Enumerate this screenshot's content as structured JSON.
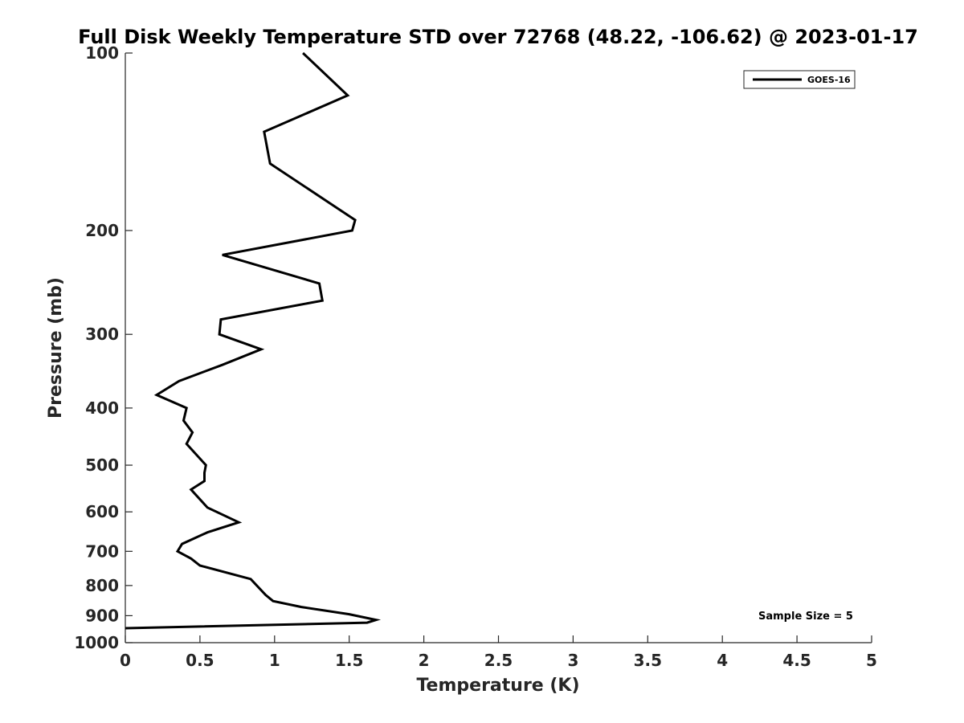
{
  "chart_data": {
    "type": "line",
    "title": "Full Disk Weekly Temperature STD over 72768 (48.22, -106.62) @ 2023-01-17",
    "xlabel": "Temperature (K)",
    "ylabel": "Pressure (mb)",
    "xlim": [
      0,
      5
    ],
    "ylim": [
      100,
      1000
    ],
    "y_scale": "log",
    "y_direction": "reversed",
    "x_ticks": [
      "0",
      "0.5",
      "1",
      "1.5",
      "2",
      "2.5",
      "3",
      "3.5",
      "4",
      "4.5",
      "5"
    ],
    "y_ticks": [
      "100",
      "200",
      "300",
      "400",
      "500",
      "600",
      "700",
      "800",
      "900",
      "1000"
    ],
    "grid": false,
    "legend_position": "top-right",
    "annotation": "Sample Size = 5",
    "series": [
      {
        "name": "GOES-16",
        "color": "#000000",
        "points": [
          {
            "x": 1.19,
            "y": 100
          },
          {
            "x": 1.49,
            "y": 118
          },
          {
            "x": 0.93,
            "y": 136
          },
          {
            "x": 0.97,
            "y": 154
          },
          {
            "x": 1.54,
            "y": 192
          },
          {
            "x": 1.52,
            "y": 200
          },
          {
            "x": 0.65,
            "y": 220
          },
          {
            "x": 1.3,
            "y": 246
          },
          {
            "x": 1.32,
            "y": 263
          },
          {
            "x": 0.64,
            "y": 283
          },
          {
            "x": 0.63,
            "y": 300
          },
          {
            "x": 0.91,
            "y": 318
          },
          {
            "x": 0.65,
            "y": 338
          },
          {
            "x": 0.36,
            "y": 360
          },
          {
            "x": 0.21,
            "y": 380
          },
          {
            "x": 0.41,
            "y": 400
          },
          {
            "x": 0.39,
            "y": 420
          },
          {
            "x": 0.45,
            "y": 440
          },
          {
            "x": 0.41,
            "y": 460
          },
          {
            "x": 0.54,
            "y": 500
          },
          {
            "x": 0.53,
            "y": 515
          },
          {
            "x": 0.53,
            "y": 532
          },
          {
            "x": 0.44,
            "y": 550
          },
          {
            "x": 0.55,
            "y": 590
          },
          {
            "x": 0.76,
            "y": 625
          },
          {
            "x": 0.55,
            "y": 650
          },
          {
            "x": 0.38,
            "y": 680
          },
          {
            "x": 0.35,
            "y": 700
          },
          {
            "x": 0.44,
            "y": 720
          },
          {
            "x": 0.5,
            "y": 740
          },
          {
            "x": 0.84,
            "y": 780
          },
          {
            "x": 0.94,
            "y": 830
          },
          {
            "x": 0.99,
            "y": 850
          },
          {
            "x": 1.18,
            "y": 870
          },
          {
            "x": 1.5,
            "y": 895
          },
          {
            "x": 1.68,
            "y": 915
          },
          {
            "x": 1.62,
            "y": 925
          },
          {
            "x": 0.0,
            "y": 945
          }
        ]
      }
    ]
  }
}
